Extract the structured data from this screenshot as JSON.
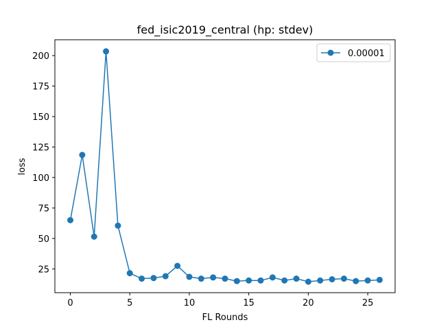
{
  "chart_data": {
    "type": "line",
    "title": "fed_isic2019_central (hp: stdev)",
    "xlabel": "FL Rounds",
    "ylabel": "loss",
    "xlim": [
      -1.3,
      27.3
    ],
    "ylim": [
      5.5,
      213
    ],
    "xticks": [
      0,
      5,
      10,
      15,
      20,
      25
    ],
    "yticks": [
      25,
      50,
      75,
      100,
      125,
      150,
      175,
      200
    ],
    "grid": false,
    "legend_position": "top-right",
    "series": [
      {
        "name": "0.00001",
        "color": "#1f77b4",
        "marker": "circle",
        "x": [
          0,
          1,
          2,
          3,
          4,
          5,
          6,
          7,
          8,
          9,
          10,
          11,
          12,
          13,
          14,
          15,
          16,
          17,
          18,
          19,
          20,
          21,
          22,
          23,
          24,
          25,
          26
        ],
        "y": [
          65,
          118.5,
          51.5,
          203.5,
          60.5,
          21.5,
          17,
          17.5,
          19,
          27.5,
          18.5,
          17,
          18,
          17,
          15,
          15.5,
          15.5,
          18,
          15.5,
          17,
          14.5,
          15.5,
          16.5,
          17,
          15,
          15.5,
          16
        ]
      }
    ]
  }
}
